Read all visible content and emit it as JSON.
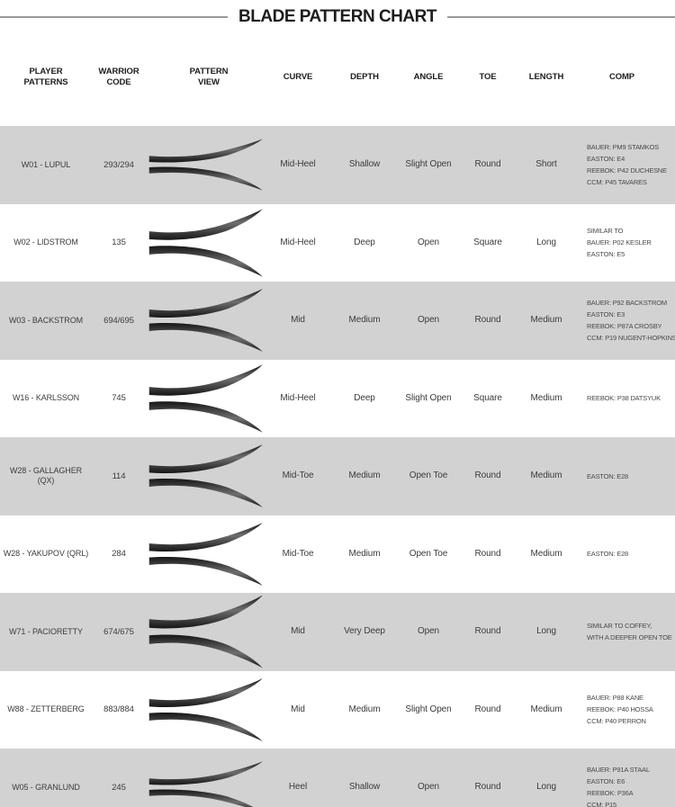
{
  "chart_data": {
    "type": "table",
    "title": "BLADE PATTERN CHART",
    "icons": {
      "pattern_view": "hockey-blade-silhouette-icon"
    },
    "colors": {
      "shaded_row": "#d2d2d2",
      "heading_text": "#1d1d1d",
      "value_text": "#3c3c3c",
      "comp_text": "#4a4a4a",
      "rule_line": "#9a9a9a",
      "blade_dark": "#161616",
      "blade_sheen": "#6e6e6e"
    },
    "columns": [
      {
        "id": "player",
        "label": "PLAYER\nPATTERNS"
      },
      {
        "id": "code",
        "label": "WARRIOR\nCODE"
      },
      {
        "id": "pattern",
        "label": "PATTERN\nVIEW"
      },
      {
        "id": "curve",
        "label": "CURVE"
      },
      {
        "id": "depth",
        "label": "DEPTH"
      },
      {
        "id": "angle",
        "label": "ANGLE"
      },
      {
        "id": "toe",
        "label": "TOE"
      },
      {
        "id": "length",
        "label": "LENGTH"
      },
      {
        "id": "comp",
        "label": "COMP"
      }
    ],
    "rows": [
      {
        "player": "W01 - LUPUL",
        "code": "293/294",
        "curve": "Mid-Heel",
        "depth": "Shallow",
        "angle": "Slight Open",
        "toe": "Round",
        "length": "Short",
        "comp": [
          "BAUER: PM9 STAMKOS",
          "EASTON: E4",
          "REEBOK: P42 DUCHESNE",
          "CCM: P45 TAVARES"
        ]
      },
      {
        "player": "W02 - LIDSTROM",
        "code": "135",
        "curve": "Mid-Heel",
        "depth": "Deep",
        "angle": "Open",
        "toe": "Square",
        "length": "Long",
        "comp": [
          "SIMILAR TO",
          "BAUER: P02 KESLER",
          "EASTON: E5"
        ]
      },
      {
        "player": "W03 - BACKSTROM",
        "code": "694/695",
        "curve": "Mid",
        "depth": "Medium",
        "angle": "Open",
        "toe": "Round",
        "length": "Medium",
        "comp": [
          "BAUER: P92 BACKSTROM",
          "EASTON: E3",
          "REEBOK: P87A CROSBY",
          "CCM: P19 NUGENT-HOPKINS"
        ]
      },
      {
        "player": "W16 - KARLSSON",
        "code": "745",
        "curve": "Mid-Heel",
        "depth": "Deep",
        "angle": "Slight Open",
        "toe": "Square",
        "length": "Medium",
        "comp": [
          "REEBOK: P38 DATSYUK"
        ]
      },
      {
        "player": "W28 - GALLAGHER (QX)",
        "code": "114",
        "curve": "Mid-Toe",
        "depth": "Medium",
        "angle": "Open Toe",
        "toe": "Round",
        "length": "Medium",
        "comp": [
          "EASTON: E28"
        ]
      },
      {
        "player": "W28 - YAKUPOV (QRL)",
        "code": "284",
        "curve": "Mid-Toe",
        "depth": "Medium",
        "angle": "Open Toe",
        "toe": "Round",
        "length": "Medium",
        "comp": [
          "EASTON: E28"
        ]
      },
      {
        "player": "W71 - PACIORETTY",
        "code": "674/675",
        "curve": "Mid",
        "depth": "Very Deep",
        "angle": "Open",
        "toe": "Round",
        "length": "Long",
        "comp": [
          "SIMILAR TO COFFEY,",
          "WITH A DEEPER OPEN TOE"
        ]
      },
      {
        "player": "W88 - ZETTERBERG",
        "code": "883/884",
        "curve": "Mid",
        "depth": "Medium",
        "angle": "Slight Open",
        "toe": "Round",
        "length": "Medium",
        "comp": [
          "BAUER: P88 KANE",
          "REEBOK: P40 HOSSA",
          "CCM: P40 PERRON"
        ]
      },
      {
        "player": "W05 - GRANLUND",
        "code": "245",
        "curve": "Heel",
        "depth": "Shallow",
        "angle": "Open",
        "toe": "Round",
        "length": "Long",
        "comp": [
          "BAUER: P91A STAAL",
          "EASTON: E6",
          "REEBOK: P36A",
          "CCM: P15"
        ]
      }
    ]
  }
}
